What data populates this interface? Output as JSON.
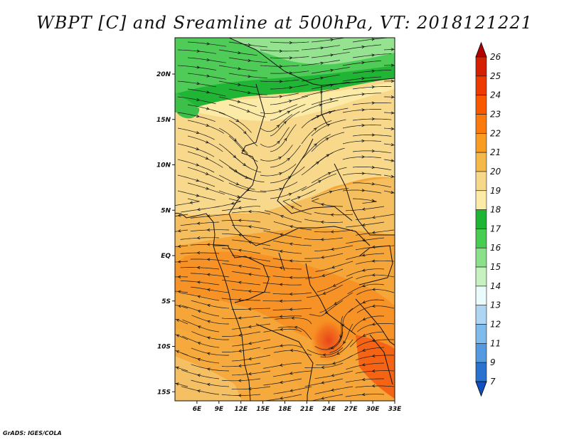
{
  "title": "WBPT [C] and Sreamline at 500hPa, VT: 2018121221",
  "credit": "GrADS: IGES/COLA",
  "map": {
    "lon_range": [
      3,
      33
    ],
    "lat_range": [
      -16,
      24
    ],
    "lat_ticks": [
      {
        "value": 20,
        "label": "20N"
      },
      {
        "value": 15,
        "label": "15N"
      },
      {
        "value": 10,
        "label": "10N"
      },
      {
        "value": 5,
        "label": "5N"
      },
      {
        "value": 0,
        "label": "EQ"
      },
      {
        "value": -5,
        "label": "5S"
      },
      {
        "value": -10,
        "label": "10S"
      },
      {
        "value": -15,
        "label": "15S"
      }
    ],
    "lon_ticks": [
      {
        "value": 6,
        "label": "6E"
      },
      {
        "value": 9,
        "label": "9E"
      },
      {
        "value": 12,
        "label": "12E"
      },
      {
        "value": 15,
        "label": "15E"
      },
      {
        "value": 18,
        "label": "18E"
      },
      {
        "value": 21,
        "label": "21E"
      },
      {
        "value": 24,
        "label": "24E"
      },
      {
        "value": 27,
        "label": "27E"
      },
      {
        "value": 30,
        "label": "30E"
      },
      {
        "value": 33,
        "label": "33E"
      }
    ]
  },
  "colorbar": {
    "labels": [
      "26",
      "25",
      "24",
      "23",
      "22",
      "21",
      "20",
      "19",
      "18",
      "17",
      "16",
      "15",
      "14",
      "13",
      "12",
      "11",
      "9",
      "7"
    ],
    "colors": [
      "#b50000",
      "#d42000",
      "#ec3a00",
      "#f75800",
      "#fa7a10",
      "#f99d22",
      "#f5b94a",
      "#f7d888",
      "#fbeba6",
      "#1fb534",
      "#48cc52",
      "#8be08a",
      "#c6f2c0",
      "#e9fbfb",
      "#aed6f3",
      "#7fbceb",
      "#5599e0",
      "#2a72d0",
      "#0f4fc5"
    ]
  }
}
